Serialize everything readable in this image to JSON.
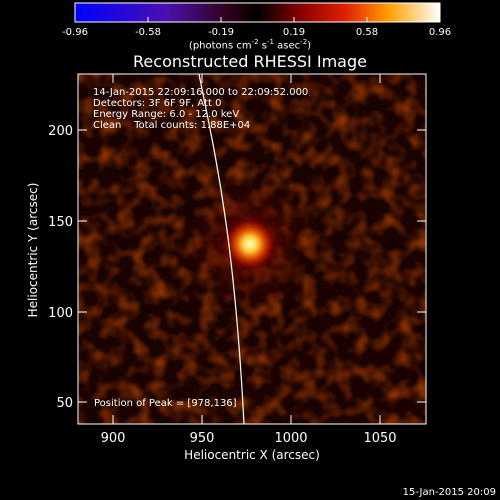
{
  "colorbar": {
    "tick_labels": [
      "-0.96",
      "-0.58",
      "-0.19",
      "0.19",
      "0.58",
      "0.96"
    ],
    "unit_prefix": "(photons cm",
    "unit_exp1": "-2",
    "unit_mid": " s",
    "unit_exp2": "-1",
    "unit_mid2": " asec",
    "unit_exp3": "-2",
    "unit_suffix": ")"
  },
  "title": "Reconstructed RHESSI Image",
  "info": {
    "time": "14-Jan-2015 22:09:16.000 to 22:09:52.000",
    "detectors": "Detectors: 3F 6F 9F, Att 0",
    "energy": "Energy Range: 6.0 - 12.0 keV",
    "clean": "Clean    Total counts: 1.88E+04"
  },
  "peak_text": "Position of Peak = [978,136]",
  "axes": {
    "x_label": "Heliocentric X (arcsec)",
    "y_label": "Heliocentric Y (arcsec)",
    "x_ticks": [
      "900",
      "950",
      "1000",
      "1050"
    ],
    "y_ticks": [
      "50",
      "100",
      "150",
      "200"
    ]
  },
  "footer_date": "15-Jan-2015 20:09",
  "colors": {
    "limb": "#ffffff",
    "source_core": "#ffffc8",
    "background": "#000000"
  }
}
